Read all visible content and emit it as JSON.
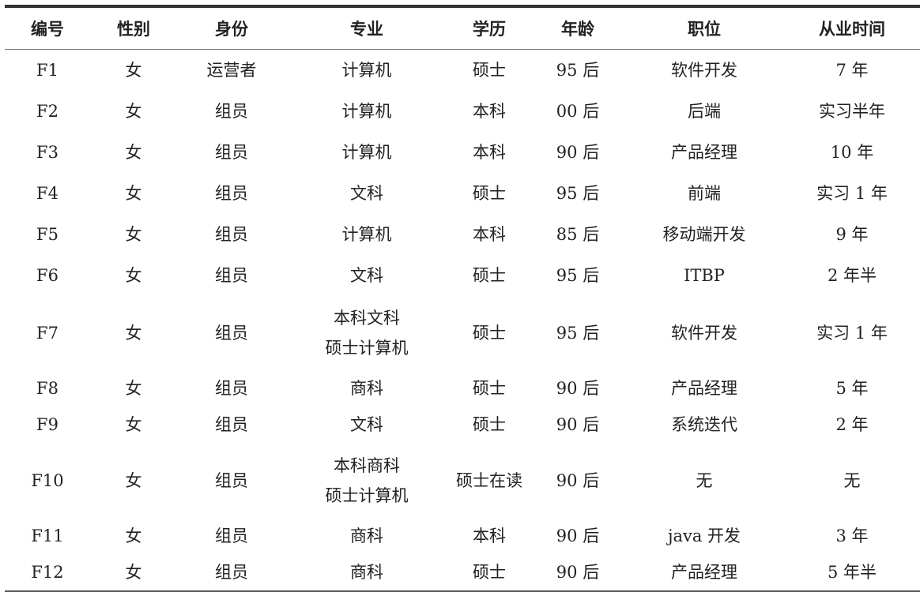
{
  "headers": [
    "编号",
    "性别",
    "身份",
    "专业",
    "学历",
    "年龄",
    "职位",
    "从业时间"
  ],
  "rows": [
    [
      "F1",
      "女",
      "运营者",
      "计算机",
      "硕士",
      "95 后",
      "软件开发",
      "7 年"
    ],
    [
      "F2",
      "女",
      "组员",
      "计算机",
      "本科",
      "00 后",
      "后端",
      "实习半年"
    ],
    [
      "F3",
      "女",
      "组员",
      "计算机",
      "本科",
      "90 后",
      "产品经理",
      "10 年"
    ],
    [
      "F4",
      "女",
      "组员",
      "文科",
      "硕士",
      "95 后",
      "前端",
      "实习 1 年"
    ],
    [
      "F5",
      "女",
      "组员",
      "计算机",
      "本科",
      "85 后",
      "移动端开发",
      "9 年"
    ],
    [
      "F6",
      "女",
      "组员",
      "文科",
      "硕士",
      "95 后",
      "ITBP",
      "2 年半"
    ],
    [
      "F7",
      "女",
      "组员",
      "本科文科\n硕士计算机",
      "硕士",
      "95 后",
      "软件开发",
      "实习 1 年"
    ],
    [
      "F8",
      "女",
      "组员",
      "商科",
      "硕士",
      "90 后",
      "产品经理",
      "5 年"
    ],
    [
      "F9",
      "女",
      "组员",
      "文科",
      "硕士",
      "90 后",
      "系统迭代",
      "2 年"
    ],
    [
      "F10",
      "女",
      "组员",
      "本科商科\n硕士计算机",
      "硕士在读",
      "90 后",
      "无",
      "无"
    ],
    [
      "F11",
      "女",
      "组员",
      "商科",
      "本科",
      "90 后",
      "java 开发",
      "3 年"
    ],
    [
      "F12",
      "女",
      "组员",
      "商科",
      "硕士",
      "90 后",
      "产品经理",
      "5 年半"
    ]
  ]
}
